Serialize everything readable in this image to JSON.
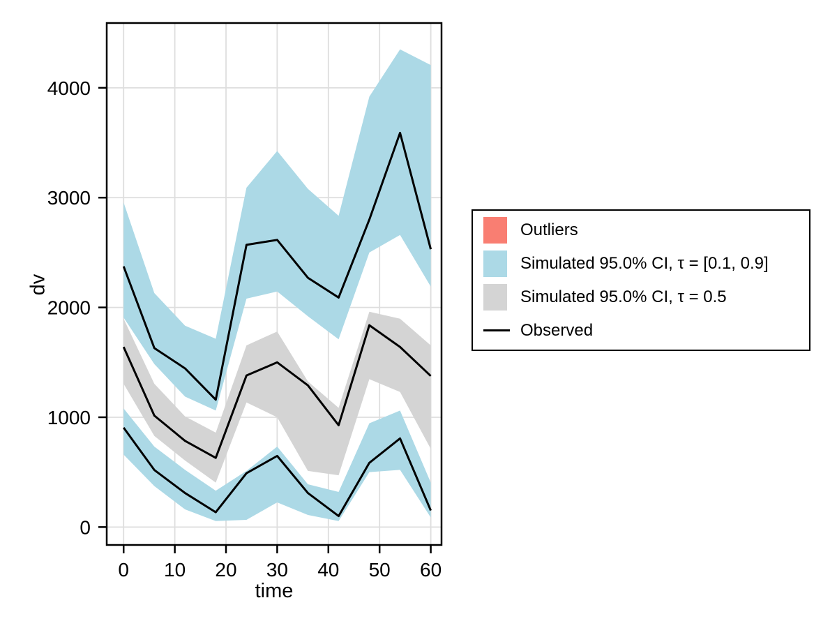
{
  "figure": {
    "background": "#ffffff",
    "description": "Visual predictive check plot with simulated confidence interval bands and observed percentile lines"
  },
  "colors": {
    "band_blue": "#ACD9E6",
    "band_gray": "#D4D4D4",
    "outlier_red": "#F97E72",
    "observed_line": "#000000",
    "grid": "#DEDEDE",
    "frame": "#000000"
  },
  "legend": {
    "items": [
      {
        "label": "Outliers",
        "swatch": "rect",
        "color": "#F97E72"
      },
      {
        "label": "Simulated 95.0% CI, τ = [0.1, 0.9]",
        "swatch": "rect",
        "color": "#ACD9E6"
      },
      {
        "label": "Simulated 95.0% CI, τ = 0.5",
        "swatch": "rect",
        "color": "#D4D4D4"
      },
      {
        "label": "Observed",
        "swatch": "line",
        "color": "#000000"
      }
    ]
  },
  "chart_data": {
    "type": "area",
    "title": "",
    "xlabel": "time",
    "ylabel": "dv",
    "x": [
      0,
      6,
      12,
      18,
      24,
      30,
      36,
      42,
      48,
      54,
      60
    ],
    "xlim": [
      -3.3,
      62.1
    ],
    "ylim": [
      -163,
      4590
    ],
    "x_ticks": [
      0,
      10,
      20,
      30,
      40,
      50,
      60
    ],
    "y_ticks": [
      0,
      1000,
      2000,
      3000,
      4000
    ],
    "grid": true,
    "legend_position": "right outside",
    "bands": [
      {
        "id": "simulated-ci-tau-0.1-0.9-upper",
        "legend": "Simulated 95.0% CI, τ = [0.1, 0.9]",
        "color": "#ACD9E6",
        "upper": [
          2956,
          2131,
          1834,
          1715,
          3090,
          3425,
          3080,
          2835,
          3920,
          4350,
          4207
        ],
        "lower": [
          1908,
          1484,
          1188,
          1061,
          2080,
          2145,
          1920,
          1710,
          2500,
          2660,
          2190
        ]
      },
      {
        "id": "simulated-ci-tau-0.5",
        "legend": "Simulated 95.0% CI, τ = 0.5",
        "color": "#D4D4D4",
        "upper": [
          1897,
          1305,
          1008,
          860,
          1654,
          1781,
          1326,
          1086,
          1961,
          1897,
          1654
        ],
        "lower": [
          1305,
          830,
          606,
          405,
          1135,
          1000,
          511,
          472,
          1347,
          1230,
          712
        ]
      },
      {
        "id": "simulated-ci-tau-0.1-0.9-lower",
        "legend": "Simulated 95.0% CI, τ = [0.1, 0.9]",
        "color": "#ACD9E6",
        "upper": [
          1080,
          733,
          521,
          331,
          511,
          733,
          390,
          320,
          945,
          1061,
          405
        ],
        "lower": [
          660,
          373,
          161,
          55,
          66,
          225,
          110,
          55,
          500,
          521,
          87
        ]
      }
    ],
    "lines": [
      {
        "id": "observed-upper-percentile",
        "legend": "Observed",
        "color": "#000000",
        "values": [
          2374,
          1630,
          1445,
          1160,
          2570,
          2615,
          2270,
          2090,
          2800,
          3590,
          2530
        ]
      },
      {
        "id": "observed-median",
        "legend": "Observed",
        "color": "#000000",
        "values": [
          1640,
          1015,
          785,
          630,
          1380,
          1500,
          1290,
          927,
          1838,
          1640,
          1376
        ]
      },
      {
        "id": "observed-lower-percentile",
        "legend": "Observed",
        "color": "#000000",
        "values": [
          905,
          520,
          310,
          135,
          490,
          648,
          310,
          100,
          585,
          807,
          151
        ]
      }
    ]
  }
}
